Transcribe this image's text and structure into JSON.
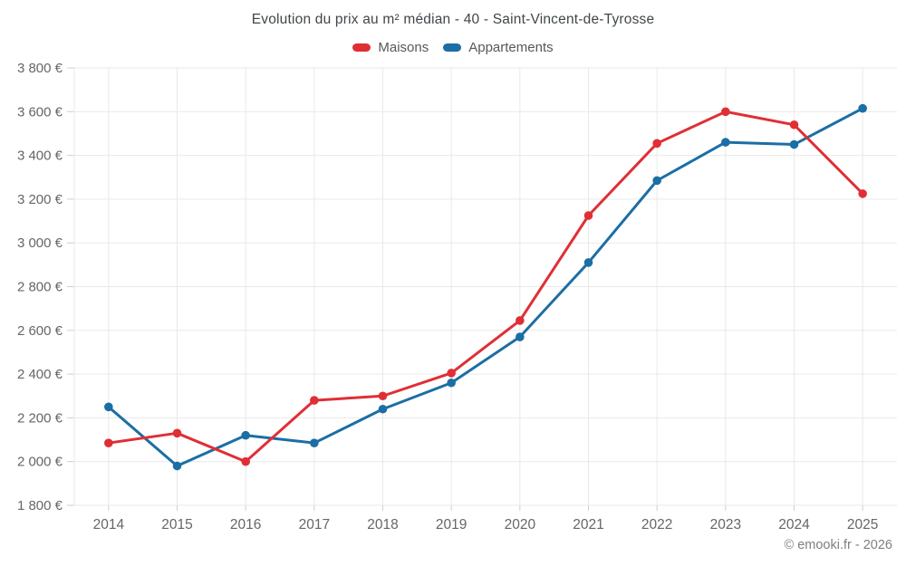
{
  "title": "Evolution du prix au m² médian - 40 - Saint-Vincent-de-Tyrosse",
  "legend": {
    "items": [
      {
        "label": "Maisons",
        "color": "#df2f35"
      },
      {
        "label": "Appartements",
        "color": "#1c6ea4"
      }
    ]
  },
  "footer": {
    "copyright": "© emooki.fr - 2026"
  },
  "chart_data": {
    "type": "line",
    "title": "Evolution du prix au m² médian - 40 - Saint-Vincent-de-Tyrosse",
    "categories": [
      "2014",
      "2015",
      "2016",
      "2017",
      "2018",
      "2019",
      "2020",
      "2021",
      "2022",
      "2023",
      "2024",
      "2025"
    ],
    "series": [
      {
        "name": "Maisons",
        "color": "#df2f35",
        "values": [
          2085,
          2130,
          2000,
          2280,
          2300,
          2405,
          2645,
          3125,
          3455,
          3600,
          3540,
          3225
        ]
      },
      {
        "name": "Appartements",
        "color": "#1c6ea4",
        "values": [
          2250,
          1980,
          2120,
          2085,
          2240,
          2360,
          2570,
          2910,
          3285,
          3460,
          3450,
          3615
        ]
      }
    ],
    "ylim": [
      1800,
      3800
    ],
    "ytick_step": 200,
    "ytick_labels": [
      "1 800 €",
      "2 000 €",
      "2 200 €",
      "2 400 €",
      "2 600 €",
      "2 800 €",
      "3 000 €",
      "3 200 €",
      "3 400 €",
      "3 600 €",
      "3 800 €"
    ],
    "ylabel": "",
    "xlabel": "",
    "grid": true,
    "legend_position": "top",
    "colors": {
      "grid": "#e9e9e9",
      "tick": "#cfcfcf",
      "axis_text": "#666666"
    }
  }
}
